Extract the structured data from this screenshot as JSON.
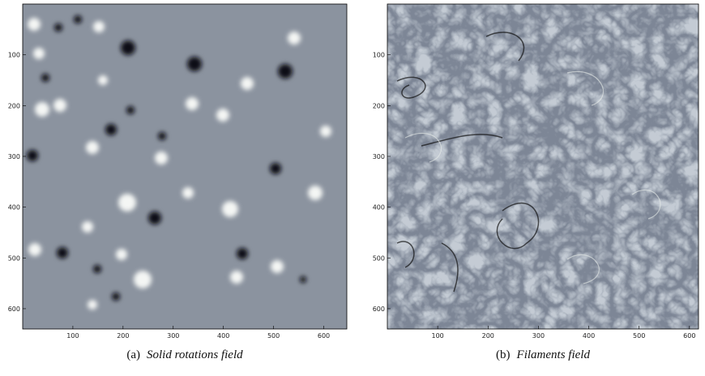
{
  "figure": {
    "panels": [
      {
        "label": "(a)",
        "caption": "Solid rotations field",
        "xlim": [
          0,
          646
        ],
        "ylim": [
          0,
          640
        ],
        "xticks": [
          100,
          200,
          300,
          400,
          500,
          600
        ],
        "yticks": [
          100,
          200,
          300,
          400,
          500,
          600
        ]
      },
      {
        "label": "(b)",
        "caption": "Filaments field",
        "xlim": [
          0,
          618
        ],
        "ylim": [
          0,
          640
        ],
        "xticks": [
          100,
          200,
          300,
          400,
          500,
          600
        ],
        "yticks": [
          100,
          200,
          300,
          400,
          500,
          600
        ]
      }
    ]
  }
}
